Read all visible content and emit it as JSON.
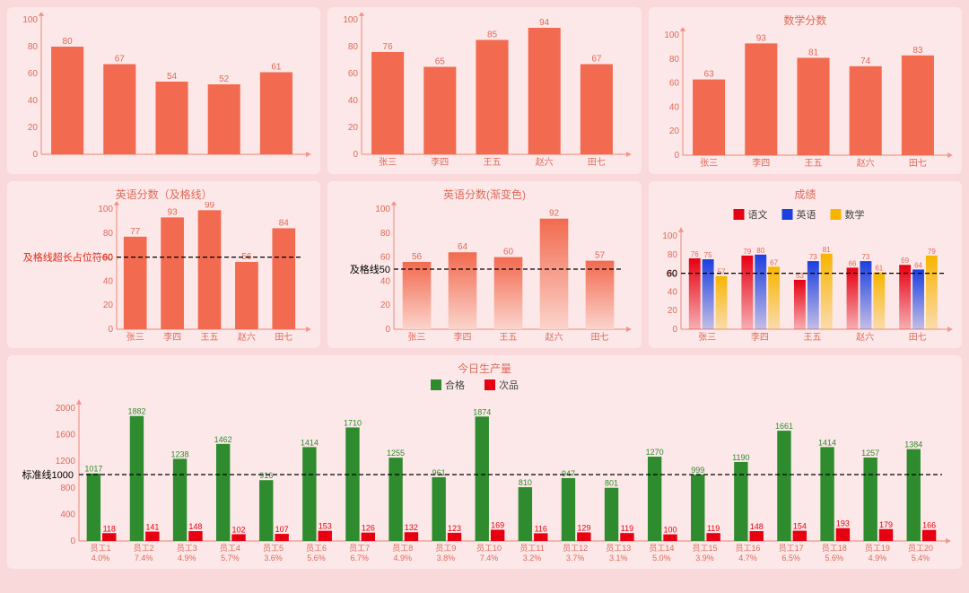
{
  "colors": {
    "page_bg": "#f9d9d9",
    "card_bg": "#fce8e8",
    "axis": "#f0988c",
    "text": "#e06a5a",
    "bar_solid": "#f26a4f",
    "grad_top": "#f26a4f",
    "grad_bot": "#fbd4cc",
    "red_legend": "#e60012",
    "blue_legend": "#1b3fe0",
    "yellow_legend": "#f7b500",
    "green": "#2e8b2e",
    "small_red": "#e60012",
    "black": "#000000"
  },
  "row1": {
    "chart1": {
      "type": "bar",
      "ylim": [
        0,
        100
      ],
      "ytick_step": 20,
      "categories": [
        "",
        "",
        "",
        "",
        ""
      ],
      "values": [
        80,
        67,
        54,
        52,
        61
      ]
    },
    "chart2": {
      "type": "bar",
      "ylim": [
        0,
        100
      ],
      "ytick_step": 20,
      "categories": [
        "张三",
        "李四",
        "王五",
        "赵六",
        "田七"
      ],
      "values": [
        76,
        65,
        85,
        94,
        67
      ]
    },
    "chart3": {
      "type": "bar",
      "title": "数学分数",
      "ylim": [
        0,
        100
      ],
      "ytick_step": 20,
      "categories": [
        "张三",
        "李四",
        "王五",
        "赵六",
        "田七"
      ],
      "values": [
        63,
        93,
        81,
        74,
        83
      ]
    }
  },
  "row2": {
    "chart4": {
      "type": "bar",
      "title": "英语分数（及格线）",
      "ylim": [
        0,
        100
      ],
      "ytick_step": 20,
      "categories": [
        "张三",
        "李四",
        "王五",
        "赵六",
        "田七"
      ],
      "values": [
        77,
        93,
        99,
        56,
        84
      ],
      "threshold": 60,
      "threshold_label": "及格线超长占位符60"
    },
    "chart5": {
      "type": "bar-gradient",
      "title": "英语分数(渐变色)",
      "ylim": [
        0,
        100
      ],
      "ytick_step": 20,
      "categories": [
        "张三",
        "李四",
        "王五",
        "赵六",
        "田七"
      ],
      "values": [
        56,
        64,
        60,
        92,
        57
      ],
      "threshold": 50,
      "threshold_label": "及格线50"
    },
    "chart6": {
      "type": "grouped-bar",
      "title": "成绩",
      "ylim": [
        0,
        100
      ],
      "ytick_step": 20,
      "categories": [
        "张三",
        "李四",
        "王五",
        "赵六",
        "田七"
      ],
      "legend": [
        {
          "label": "语文",
          "color": "#e60012"
        },
        {
          "label": "英语",
          "color": "#1b3fe0"
        },
        {
          "label": "数学",
          "color": "#f7b500"
        }
      ],
      "series": {
        "yuwen": [
          76,
          79,
          53,
          66,
          69
        ],
        "yingyu": [
          75,
          80,
          73,
          73,
          64
        ],
        "shuxue": [
          57,
          67,
          81,
          61,
          79
        ]
      },
      "threshold": 60
    }
  },
  "row3": {
    "chart7": {
      "type": "grouped-bar",
      "title": "今日生产量",
      "ylim": [
        0,
        2000
      ],
      "ytick_step": 400,
      "legend": [
        {
          "label": "合格",
          "color": "#2e8b2e"
        },
        {
          "label": "次品",
          "color": "#e60012"
        }
      ],
      "threshold": 1000,
      "threshold_label": "标准线1000",
      "categories": [
        "员工1",
        "员工2",
        "员工3",
        "员工4",
        "员工5",
        "员工6",
        "员工7",
        "员工8",
        "员工9",
        "员工10",
        "员工11",
        "员工12",
        "员工13",
        "员工14",
        "员工15",
        "员工16",
        "员工17",
        "员工18",
        "员工19",
        "员工20"
      ],
      "hege": [
        1017,
        1882,
        1238,
        1462,
        916,
        1414,
        1710,
        1255,
        961,
        1874,
        810,
        947,
        801,
        1270,
        999,
        1190,
        1661,
        1414,
        1257,
        1384
      ],
      "cipin": [
        118,
        141,
        148,
        102,
        107,
        153,
        126,
        132,
        123,
        169,
        116,
        129,
        119,
        100,
        119,
        148,
        154,
        193,
        179,
        166
      ],
      "pct": [
        "4.0%",
        "7.4%",
        "4.9%",
        "5.7%",
        "3.6%",
        "5.6%",
        "6.7%",
        "4.9%",
        "3.8%",
        "7.4%",
        "3.2%",
        "3.7%",
        "3.1%",
        "5.0%",
        "3.9%",
        "4.7%",
        "6.5%",
        "5.6%",
        "4.9%",
        "5.4%"
      ]
    }
  }
}
